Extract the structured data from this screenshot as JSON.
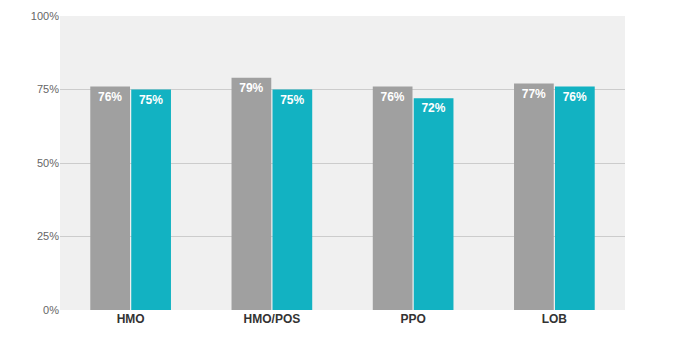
{
  "chart_data": {
    "type": "bar",
    "categories": [
      "HMO",
      "HMO/POS",
      "PPO",
      "LOB"
    ],
    "series": [
      {
        "color": "#a0a0a0",
        "values": [
          76,
          79,
          76,
          77
        ],
        "value_labels": [
          "76%",
          "79%",
          "76%",
          "77%"
        ]
      },
      {
        "color": "#12b2c2",
        "values": [
          75,
          75,
          72,
          76
        ],
        "value_labels": [
          "75%",
          "75%",
          "72%",
          "76%"
        ]
      }
    ],
    "ylim": [
      0,
      100
    ],
    "yticks": [
      {
        "value": 0,
        "label": "0%"
      },
      {
        "value": 25,
        "label": "25%"
      },
      {
        "value": 50,
        "label": "50%"
      },
      {
        "value": 75,
        "label": "75%"
      },
      {
        "value": 100,
        "label": "100%"
      }
    ],
    "grid": true,
    "data_labels": true
  }
}
